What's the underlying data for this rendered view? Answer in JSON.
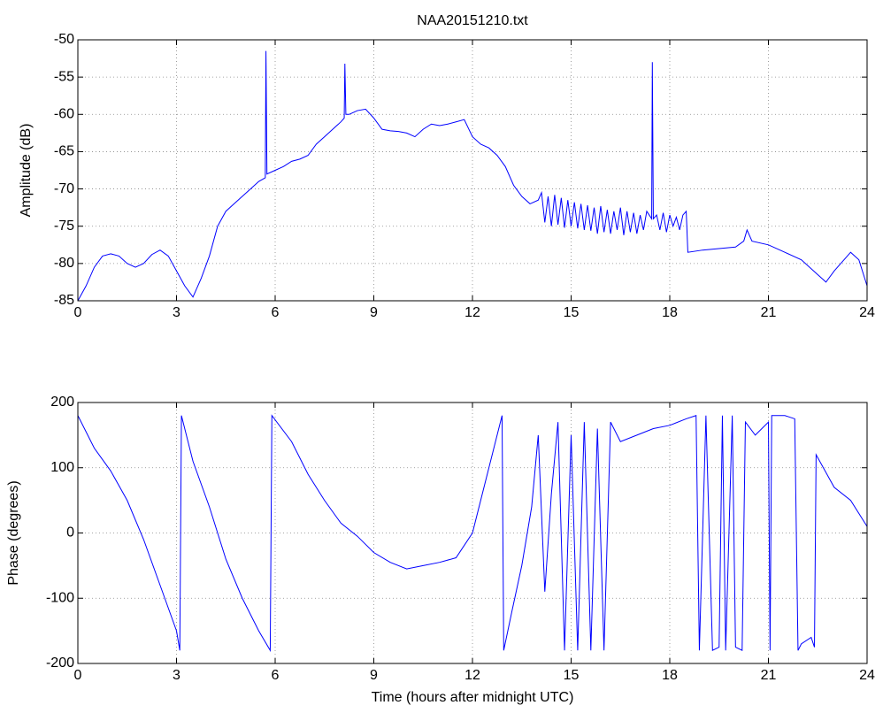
{
  "chart_data": [
    {
      "type": "line",
      "title": "NAA20151210.txt",
      "ylabel": "Amplitude (dB)",
      "xlim": [
        0,
        24
      ],
      "xticks": [
        0,
        3,
        6,
        9,
        12,
        15,
        18,
        21,
        24
      ],
      "ylim": [
        -85,
        -50
      ],
      "yticks": [
        -85,
        -80,
        -75,
        -70,
        -65,
        -60,
        -55,
        -50
      ],
      "grid": true,
      "series": [
        {
          "color": "#0000ff",
          "x": [
            0,
            0.25,
            0.5,
            0.75,
            1.0,
            1.25,
            1.5,
            1.75,
            2.0,
            2.25,
            2.5,
            2.75,
            3.0,
            3.25,
            3.5,
            3.75,
            4.0,
            4.25,
            4.5,
            4.75,
            5.0,
            5.25,
            5.5,
            5.7,
            5.72,
            5.75,
            6.0,
            6.25,
            6.5,
            6.75,
            7.0,
            7.25,
            7.5,
            7.75,
            8.0,
            8.1,
            8.12,
            8.15,
            8.25,
            8.5,
            8.75,
            9.0,
            9.25,
            9.5,
            9.75,
            10.0,
            10.25,
            10.5,
            10.75,
            11.0,
            11.25,
            11.5,
            11.75,
            12.0,
            12.25,
            12.5,
            12.75,
            13.0,
            13.25,
            13.5,
            13.75,
            14.0,
            14.1,
            14.2,
            14.3,
            14.4,
            14.5,
            14.6,
            14.7,
            14.8,
            14.9,
            15.0,
            15.1,
            15.2,
            15.3,
            15.4,
            15.5,
            15.6,
            15.7,
            15.8,
            15.9,
            16.0,
            16.1,
            16.2,
            16.3,
            16.4,
            16.5,
            16.6,
            16.7,
            16.8,
            16.9,
            17.0,
            17.1,
            17.2,
            17.3,
            17.45,
            17.47,
            17.5,
            17.6,
            17.7,
            17.8,
            17.9,
            18.0,
            18.1,
            18.2,
            18.3,
            18.4,
            18.5,
            18.55,
            19.0,
            19.5,
            20.0,
            20.25,
            20.35,
            20.5,
            21.0,
            21.5,
            22.0,
            22.5,
            22.75,
            23.0,
            23.5,
            23.75,
            24.0
          ],
          "values": [
            -85,
            -83,
            -80.5,
            -79,
            -78.7,
            -79,
            -80,
            -80.5,
            -80,
            -78.8,
            -78.2,
            -79,
            -81,
            -83,
            -84.5,
            -82,
            -79,
            -75,
            -73,
            -72,
            -71,
            -70,
            -69,
            -68.5,
            -51.5,
            -68,
            -67.5,
            -67,
            -66.3,
            -66,
            -65.5,
            -64,
            -63,
            -62,
            -61,
            -60.5,
            -53.2,
            -60,
            -60,
            -59.5,
            -59.3,
            -60.5,
            -62,
            -62.2,
            -62.3,
            -62.5,
            -63,
            -62,
            -61.3,
            -61.5,
            -61.3,
            -61,
            -60.7,
            -63,
            -64,
            -64.5,
            -65.5,
            -67,
            -69.5,
            -71,
            -72,
            -71.5,
            -70.5,
            -74.5,
            -71,
            -75,
            -70.8,
            -74.8,
            -71.2,
            -75.2,
            -71.5,
            -75,
            -71.8,
            -75.3,
            -72,
            -75.5,
            -72.2,
            -75.6,
            -72.5,
            -76,
            -72.3,
            -75.8,
            -72.8,
            -76,
            -73,
            -75.5,
            -72.5,
            -76.2,
            -73,
            -75.8,
            -73.2,
            -76,
            -73.5,
            -75.5,
            -73,
            -74,
            -53,
            -74,
            -73.5,
            -75.5,
            -73.2,
            -75.8,
            -73.5,
            -75,
            -73.8,
            -75.5,
            -73.5,
            -73,
            -78.5,
            -78.2,
            -78,
            -77.8,
            -77,
            -75.5,
            -77,
            -77.5,
            -78.5,
            -79.5,
            -81.5,
            -82.5,
            -81,
            -78.5,
            -79.5,
            -83
          ]
        }
      ]
    },
    {
      "type": "line",
      "ylabel": "Phase (degrees)",
      "xlabel": "Time (hours after midnight UTC)",
      "xlim": [
        0,
        24
      ],
      "xticks": [
        0,
        3,
        6,
        9,
        12,
        15,
        18,
        21,
        24
      ],
      "ylim": [
        -200,
        200
      ],
      "yticks": [
        -200,
        -100,
        0,
        100,
        200
      ],
      "grid": true,
      "series": [
        {
          "color": "#0000ff",
          "x": [
            0,
            0.5,
            1,
            1.5,
            2,
            2.5,
            3,
            3.1,
            3.15,
            3.5,
            4,
            4.5,
            5,
            5.5,
            5.85,
            5.9,
            6.5,
            7,
            7.5,
            8,
            8.5,
            9,
            9.5,
            10,
            10.5,
            11,
            11.5,
            12,
            12.5,
            12.9,
            12.95,
            13.2,
            13.5,
            13.8,
            14,
            14.2,
            14.4,
            14.6,
            14.8,
            15,
            15.2,
            15.4,
            15.6,
            15.8,
            16,
            16.2,
            16.5,
            17,
            17.5,
            18,
            18.5,
            18.8,
            18.9,
            19.1,
            19.3,
            19.5,
            19.6,
            19.7,
            19.9,
            20,
            20.2,
            20.3,
            20.6,
            21,
            21.05,
            21.1,
            21.5,
            21.8,
            21.9,
            22,
            22.3,
            22.4,
            22.45,
            23,
            23.5,
            24
          ],
          "values": [
            180,
            130,
            95,
            50,
            -10,
            -80,
            -150,
            -180,
            180,
            110,
            40,
            -40,
            -100,
            -150,
            -180,
            180,
            140,
            90,
            50,
            15,
            -5,
            -30,
            -45,
            -55,
            -50,
            -45,
            -38,
            0,
            100,
            180,
            -180,
            -120,
            -50,
            40,
            150,
            -90,
            60,
            170,
            -180,
            150,
            -180,
            170,
            -180,
            160,
            -180,
            170,
            140,
            150,
            160,
            165,
            175,
            180,
            -180,
            180,
            -180,
            -175,
            180,
            -180,
            180,
            -175,
            -180,
            170,
            150,
            170,
            -180,
            180,
            180,
            175,
            -180,
            -170,
            -160,
            -175,
            120,
            70,
            50,
            10
          ]
        }
      ]
    }
  ]
}
